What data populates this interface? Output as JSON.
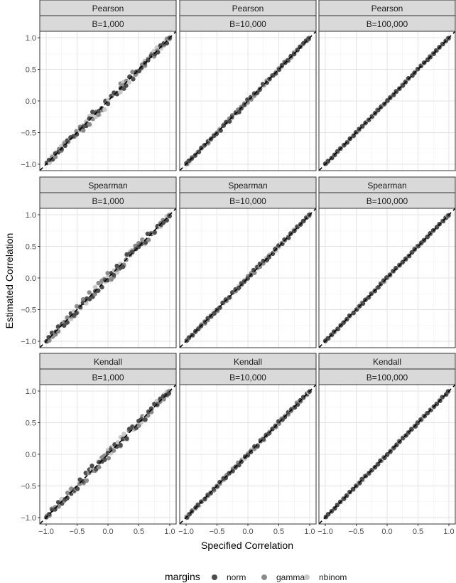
{
  "chart_data": {
    "type": "scatter",
    "xlabel": "Specified Correlation",
    "ylabel": "Estimated Correlation",
    "xlim": [
      -1.0,
      1.0
    ],
    "ylim": [
      -1.0,
      1.0
    ],
    "ticks": [
      -1.0,
      -0.5,
      0.0,
      0.5,
      1.0
    ],
    "tick_labels": [
      "−1.0",
      "−0.5",
      "0.0",
      "0.5",
      "1.0"
    ],
    "grid": true,
    "reference_line": {
      "slope": 1,
      "intercept": 0,
      "style": "dashed",
      "color": "#000000"
    },
    "rows": [
      "Pearson",
      "Spearman",
      "Kendall"
    ],
    "cols": [
      "B=1,000",
      "B=10,000",
      "B=100,000"
    ],
    "legend": {
      "title": "margins",
      "position": "bottom",
      "entries": [
        {
          "name": "norm",
          "color": "#4d4d4d"
        },
        {
          "name": "gamma",
          "color": "#8c8c8c"
        },
        {
          "name": "nbinom",
          "color": "#c8c8c8"
        }
      ]
    },
    "spread_by_col": [
      0.09,
      0.03,
      0.012
    ],
    "x": [
      -0.99,
      -0.95,
      -0.9,
      -0.85,
      -0.8,
      -0.75,
      -0.7,
      -0.65,
      -0.6,
      -0.55,
      -0.5,
      -0.45,
      -0.4,
      -0.35,
      -0.3,
      -0.25,
      -0.2,
      -0.15,
      -0.1,
      -0.05,
      0.0,
      0.05,
      0.1,
      0.15,
      0.2,
      0.25,
      0.3,
      0.35,
      0.4,
      0.45,
      0.5,
      0.55,
      0.6,
      0.65,
      0.7,
      0.75,
      0.8,
      0.85,
      0.9,
      0.95,
      0.99
    ]
  }
}
